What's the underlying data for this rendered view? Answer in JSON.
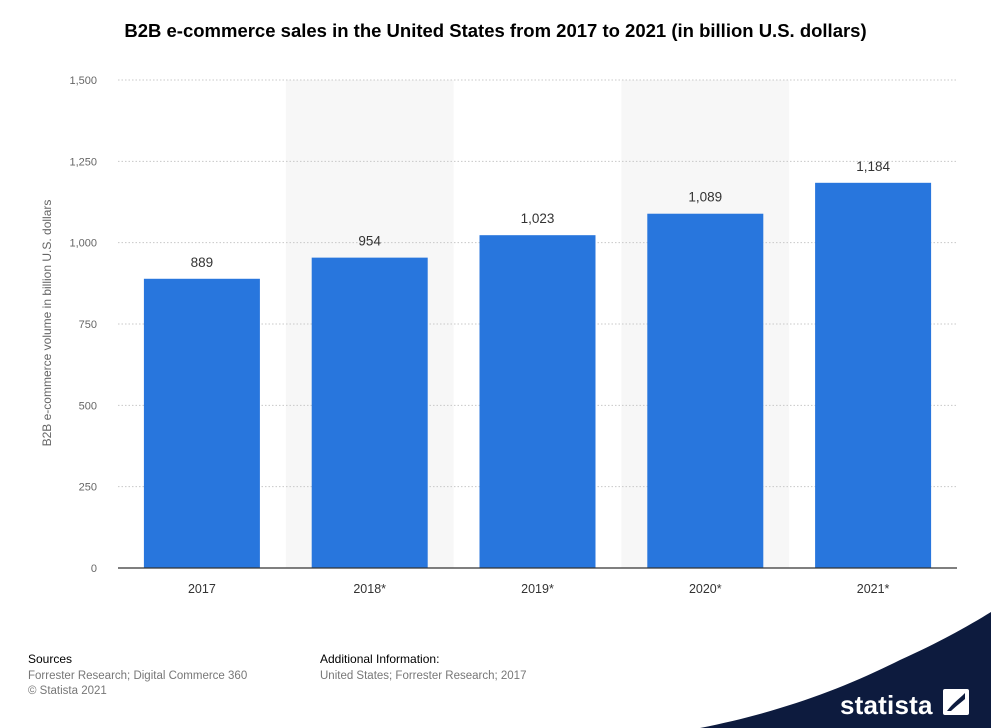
{
  "chart_data": {
    "type": "bar",
    "title": "B2B e-commerce sales in the United States from 2017 to 2021 (in billion U.S. dollars)",
    "xlabel": "",
    "ylabel": "B2B e-commerce volume in billion U.S. dollars",
    "categories": [
      "2017",
      "2018*",
      "2019*",
      "2020*",
      "2021*"
    ],
    "values": [
      889,
      954,
      1023,
      1089,
      1184
    ],
    "value_labels": [
      "889",
      "954",
      "1,023",
      "1,089",
      "1,184"
    ],
    "ylim": [
      0,
      1500
    ],
    "yticks": [
      0,
      250,
      500,
      750,
      1000,
      1250,
      1500
    ],
    "ytick_labels": [
      "0",
      "250",
      "500",
      "750",
      "1,000",
      "1,250",
      "1,500"
    ],
    "bar_color": "#2876dd",
    "grid": true
  },
  "footer": {
    "sources_heading": "Sources",
    "sources_line1": "Forrester Research; Digital Commerce 360",
    "sources_line2": "© Statista 2021",
    "additional_heading": "Additional Information:",
    "additional_line1": "United States; Forrester Research; 2017"
  },
  "logo": {
    "text": "statista",
    "color": "#0d1b3e"
  }
}
